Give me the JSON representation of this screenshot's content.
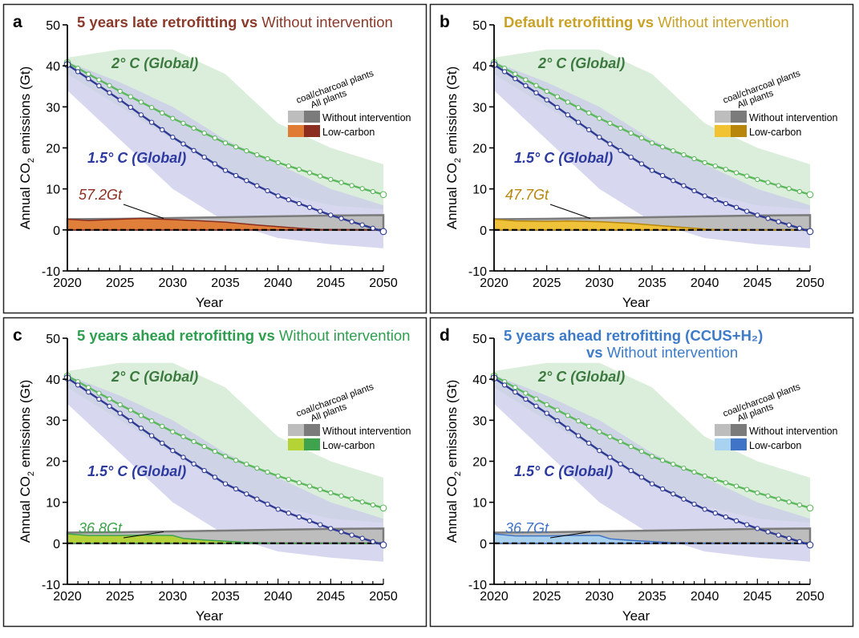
{
  "figure": {
    "ylabel": "Annual CO",
    "ylabel_sub": "2",
    "ylabel_tail": " emissions (Gt)",
    "xlabel": "Year",
    "label_2c": "2° C (Global)",
    "label_15c": "1.5° C (Global)",
    "legend_header_1": "coal/charcoal plants",
    "legend_header_2": "All plants",
    "legend_row_1": "Without intervention",
    "legend_row_2": "Low-carbon",
    "colors": {
      "path_2c": "#5cb85c",
      "path_2c_band": "#cfe8cf",
      "path_15c": "#2f3a93",
      "path_15c_band": "#c9cbe9",
      "label_2c": "#3c7a3f",
      "label_15c": "#2d3a9e",
      "without_all": "#7b7b7b",
      "without_coal": "#bdbdbd"
    }
  },
  "panels": [
    {
      "letter": "a",
      "title_bold": "5 years late retrofitting vs",
      "title_rest": " Without intervention",
      "title_line2_bold": "",
      "title_line2_rest": "",
      "annotation": "57.2Gt",
      "color_title": "#8b3a2a",
      "color_coal": "#e07b33",
      "color_all": "#8b2e1f"
    },
    {
      "letter": "b",
      "title_bold": "Default retrofitting vs",
      "title_rest": " Without intervention",
      "title_line2_bold": "",
      "title_line2_rest": "",
      "annotation": "47.7Gt",
      "color_title": "#c9a227",
      "color_coal": "#f1c232",
      "color_all": "#b8860b"
    },
    {
      "letter": "c",
      "title_bold": "5 years ahead retrofitting vs",
      "title_rest": " Without intervention",
      "title_line2_bold": "",
      "title_line2_rest": "",
      "annotation": "36.8Gt",
      "color_title": "#2e9e4f",
      "color_coal": "#b5d334",
      "color_all": "#3fa34d"
    },
    {
      "letter": "d",
      "title_bold": "5 years ahead retrofitting (CCUS+H₂)",
      "title_rest": "",
      "title_line2_bold": "vs",
      "title_line2_rest": " Without intervention",
      "annotation": "36.7Gt",
      "color_title": "#3d7bc9",
      "color_coal": "#a8d2f0",
      "color_all": "#3f74c6"
    }
  ],
  "chart_data": [
    {
      "panel": "a",
      "type": "area",
      "title": "5 years late retrofitting vs Without intervention",
      "xlabel": "Year",
      "ylabel": "Annual CO2 emissions (Gt)",
      "xlim": [
        2020,
        2050
      ],
      "ylim": [
        -10,
        50
      ],
      "x_ticks": [
        2020,
        2025,
        2030,
        2035,
        2040,
        2045,
        2050
      ],
      "y_ticks": [
        -10,
        0,
        10,
        20,
        30,
        40,
        50
      ],
      "annotation": "57.2Gt",
      "series": [
        {
          "name": "2° C (Global)",
          "type": "line",
          "x": [
            2020,
            2025,
            2030,
            2035,
            2040,
            2045,
            2050
          ],
          "y": [
            40.8,
            33.8,
            27.2,
            21.2,
            16.4,
            12.3,
            8.6
          ]
        },
        {
          "name": "2° C (Global) range",
          "type": "band",
          "x": [
            2020,
            2025,
            2030,
            2035,
            2040,
            2045,
            2050
          ],
          "lower": [
            38,
            30,
            22,
            14,
            9,
            6,
            5
          ],
          "upper": [
            42,
            44,
            44,
            38,
            26,
            20,
            16
          ]
        },
        {
          "name": "1.5° C (Global)",
          "type": "line",
          "x": [
            2020,
            2025,
            2030,
            2035,
            2040,
            2045,
            2050
          ],
          "y": [
            40.3,
            31.7,
            22.6,
            14.5,
            8.3,
            3.6,
            -0.4
          ]
        },
        {
          "name": "1.5° C (Global) range",
          "type": "band",
          "x": [
            2020,
            2025,
            2030,
            2035,
            2040,
            2045,
            2050
          ],
          "lower": [
            34,
            22,
            10,
            2,
            -2,
            -3.5,
            -4.5
          ],
          "upper": [
            41,
            36,
            30,
            22,
            16,
            10,
            6
          ]
        },
        {
          "name": "Without intervention",
          "type": "area",
          "x": [
            2020,
            2025,
            2030,
            2035,
            2040,
            2045,
            2050
          ],
          "y": [
            2.6,
            2.7,
            2.9,
            3.1,
            3.3,
            3.5,
            3.6
          ]
        },
        {
          "name": "Low-carbon",
          "type": "area",
          "x": [
            2020,
            2022,
            2025,
            2027,
            2030,
            2032,
            2035,
            2038,
            2040,
            2042,
            2044,
            2050
          ],
          "y": [
            2.6,
            2.3,
            2.6,
            2.8,
            2.5,
            2.3,
            1.9,
            1.2,
            0.8,
            0.4,
            0.1,
            0
          ]
        }
      ]
    },
    {
      "panel": "b",
      "type": "area",
      "title": "Default retrofitting vs Without intervention",
      "xlabel": "Year",
      "ylabel": "Annual CO2 emissions (Gt)",
      "xlim": [
        2020,
        2050
      ],
      "ylim": [
        -10,
        50
      ],
      "x_ticks": [
        2020,
        2025,
        2030,
        2035,
        2040,
        2045,
        2050
      ],
      "y_ticks": [
        -10,
        0,
        10,
        20,
        30,
        40,
        50
      ],
      "annotation": "47.7Gt",
      "series": [
        {
          "name": "2° C (Global)",
          "type": "line",
          "x": [
            2020,
            2025,
            2030,
            2035,
            2040,
            2045,
            2050
          ],
          "y": [
            40.8,
            33.8,
            27.2,
            21.2,
            16.4,
            12.3,
            8.6
          ]
        },
        {
          "name": "2° C (Global) range",
          "type": "band",
          "x": [
            2020,
            2025,
            2030,
            2035,
            2040,
            2045,
            2050
          ],
          "lower": [
            38,
            30,
            22,
            14,
            9,
            6,
            5
          ],
          "upper": [
            42,
            44,
            44,
            38,
            26,
            20,
            16
          ]
        },
        {
          "name": "1.5° C (Global)",
          "type": "line",
          "x": [
            2020,
            2025,
            2030,
            2035,
            2040,
            2045,
            2050
          ],
          "y": [
            40.3,
            31.7,
            22.6,
            14.5,
            8.3,
            3.6,
            -0.4
          ]
        },
        {
          "name": "1.5° C (Global) range",
          "type": "band",
          "x": [
            2020,
            2025,
            2030,
            2035,
            2040,
            2045,
            2050
          ],
          "lower": [
            34,
            22,
            10,
            2,
            -2,
            -3.5,
            -4.5
          ],
          "upper": [
            41,
            36,
            30,
            22,
            16,
            10,
            6
          ]
        },
        {
          "name": "Without intervention",
          "type": "area",
          "x": [
            2020,
            2025,
            2030,
            2035,
            2040,
            2045,
            2050
          ],
          "y": [
            2.6,
            2.7,
            2.9,
            3.1,
            3.3,
            3.5,
            3.6
          ]
        },
        {
          "name": "Low-carbon",
          "type": "area",
          "x": [
            2020,
            2022,
            2025,
            2027,
            2030,
            2033,
            2036,
            2038,
            2040,
            2042,
            2050
          ],
          "y": [
            2.6,
            2.2,
            2.1,
            2.2,
            2.0,
            1.6,
            1.0,
            0.6,
            0.2,
            0,
            0
          ]
        }
      ]
    },
    {
      "panel": "c",
      "type": "area",
      "title": "5 years ahead retrofitting vs Without intervention",
      "xlabel": "Year",
      "ylabel": "Annual CO2 emissions (Gt)",
      "xlim": [
        2020,
        2050
      ],
      "ylim": [
        -10,
        50
      ],
      "x_ticks": [
        2020,
        2025,
        2030,
        2035,
        2040,
        2045,
        2050
      ],
      "y_ticks": [
        -10,
        0,
        10,
        20,
        30,
        40,
        50
      ],
      "annotation": "36.8Gt",
      "series": [
        {
          "name": "2° C (Global)",
          "type": "line",
          "x": [
            2020,
            2025,
            2030,
            2035,
            2040,
            2045,
            2050
          ],
          "y": [
            40.8,
            33.8,
            27.2,
            21.2,
            16.4,
            12.3,
            8.6
          ]
        },
        {
          "name": "2° C (Global) range",
          "type": "band",
          "x": [
            2020,
            2025,
            2030,
            2035,
            2040,
            2045,
            2050
          ],
          "lower": [
            38,
            30,
            22,
            14,
            9,
            6,
            5
          ],
          "upper": [
            42,
            44,
            44,
            38,
            26,
            20,
            16
          ]
        },
        {
          "name": "1.5° C (Global)",
          "type": "line",
          "x": [
            2020,
            2025,
            2030,
            2035,
            2040,
            2045,
            2050
          ],
          "y": [
            40.3,
            31.7,
            22.6,
            14.5,
            8.3,
            3.6,
            -0.4
          ]
        },
        {
          "name": "1.5° C (Global) range",
          "type": "band",
          "x": [
            2020,
            2025,
            2030,
            2035,
            2040,
            2045,
            2050
          ],
          "lower": [
            34,
            22,
            10,
            2,
            -2,
            -3.5,
            -4.5
          ],
          "upper": [
            41,
            36,
            30,
            22,
            16,
            10,
            6
          ]
        },
        {
          "name": "Without intervention",
          "type": "area",
          "x": [
            2020,
            2025,
            2030,
            2035,
            2040,
            2045,
            2050
          ],
          "y": [
            2.6,
            2.7,
            2.9,
            3.1,
            3.3,
            3.5,
            3.6
          ]
        },
        {
          "name": "Low-carbon",
          "type": "area",
          "x": [
            2020,
            2022,
            2025,
            2027,
            2030,
            2031,
            2033,
            2035,
            2037,
            2040,
            2050
          ],
          "y": [
            2.3,
            1.9,
            1.9,
            2.0,
            1.9,
            1.2,
            0.8,
            0.5,
            0.2,
            0,
            0
          ]
        }
      ]
    },
    {
      "panel": "d",
      "type": "area",
      "title": "5 years ahead retrofitting (CCUS+H₂) vs Without intervention",
      "xlabel": "Year",
      "ylabel": "Annual CO2 emissions (Gt)",
      "xlim": [
        2020,
        2050
      ],
      "ylim": [
        -10,
        50
      ],
      "x_ticks": [
        2020,
        2025,
        2030,
        2035,
        2040,
        2045,
        2050
      ],
      "y_ticks": [
        -10,
        0,
        10,
        20,
        30,
        40,
        50
      ],
      "annotation": "36.7Gt",
      "series": [
        {
          "name": "2° C (Global)",
          "type": "line",
          "x": [
            2020,
            2025,
            2030,
            2035,
            2040,
            2045,
            2050
          ],
          "y": [
            40.8,
            33.8,
            27.2,
            21.2,
            16.4,
            12.3,
            8.6
          ]
        },
        {
          "name": "2° C (Global) range",
          "type": "band",
          "x": [
            2020,
            2025,
            2030,
            2035,
            2040,
            2045,
            2050
          ],
          "lower": [
            38,
            30,
            22,
            14,
            9,
            6,
            5
          ],
          "upper": [
            42,
            44,
            44,
            38,
            26,
            20,
            16
          ]
        },
        {
          "name": "1.5° C (Global)",
          "type": "line",
          "x": [
            2020,
            2025,
            2030,
            2035,
            2040,
            2045,
            2050
          ],
          "y": [
            40.3,
            31.7,
            22.6,
            14.5,
            8.3,
            3.6,
            -0.4
          ]
        },
        {
          "name": "1.5° C (Global) range",
          "type": "band",
          "x": [
            2020,
            2025,
            2030,
            2035,
            2040,
            2045,
            2050
          ],
          "lower": [
            34,
            22,
            10,
            2,
            -2,
            -3.5,
            -4.5
          ],
          "upper": [
            41,
            36,
            30,
            22,
            16,
            10,
            6
          ]
        },
        {
          "name": "Without intervention",
          "type": "area",
          "x": [
            2020,
            2025,
            2030,
            2035,
            2040,
            2045,
            2050
          ],
          "y": [
            2.6,
            2.7,
            2.9,
            3.1,
            3.3,
            3.5,
            3.6
          ]
        },
        {
          "name": "Low-carbon",
          "type": "area",
          "x": [
            2020,
            2022,
            2025,
            2027,
            2030,
            2031,
            2033,
            2035,
            2037,
            2040,
            2050
          ],
          "y": [
            2.3,
            1.8,
            1.8,
            1.9,
            1.9,
            1.1,
            0.7,
            0.4,
            0.1,
            0,
            0
          ]
        }
      ]
    }
  ]
}
